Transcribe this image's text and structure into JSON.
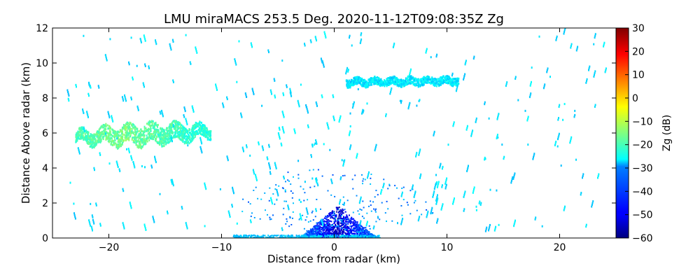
{
  "chart_data": {
    "type": "heatmap",
    "title": "LMU miraMACS 253.5 Deg. 2020-11-12T09:08:35Z  Zg",
    "xlabel": "Distance from radar (km)",
    "ylabel": "Distance Above radar  (km)",
    "xlim": [
      -25,
      25
    ],
    "ylim": [
      0,
      12
    ],
    "x_ticks": [
      -20,
      -10,
      0,
      10,
      20
    ],
    "x_tick_labels": [
      "−20",
      "−10",
      "0",
      "10",
      "20"
    ],
    "y_ticks": [
      0,
      2,
      4,
      6,
      8,
      10,
      12
    ],
    "y_tick_labels": [
      "0",
      "2",
      "4",
      "6",
      "8",
      "10",
      "12"
    ],
    "colorbar": {
      "label": "Zg (dB)",
      "range": [
        -60,
        30
      ],
      "ticks": [
        -60,
        -50,
        -40,
        -30,
        -20,
        -10,
        0,
        10,
        20,
        30
      ],
      "tick_labels": [
        "−60",
        "−50",
        "−40",
        "−30",
        "−20",
        "−10",
        "0",
        "10",
        "20",
        "30"
      ],
      "colormap": "jet"
    },
    "features": [
      {
        "description": "cloud layer left",
        "x_range": [
          -23,
          -11
        ],
        "y_range": [
          5.3,
          6.5
        ],
        "zg_range": [
          -20,
          -12
        ]
      },
      {
        "description": "cloud layer right",
        "x_range": [
          1,
          11
        ],
        "y_range": [
          8.7,
          9.4
        ],
        "zg_range": [
          -32,
          -24
        ]
      },
      {
        "description": "near-radar clutter",
        "x_range": [
          -3,
          4
        ],
        "y_range": [
          0,
          2
        ],
        "zg_range": [
          -55,
          -35
        ]
      },
      {
        "description": "ground clutter strip",
        "x_range": [
          -9,
          4
        ],
        "y_range": [
          0,
          0.2
        ],
        "zg_range": [
          -35,
          -28
        ]
      },
      {
        "description": "scattered noise",
        "x_range": [
          -24,
          24
        ],
        "y_range": [
          0,
          12
        ],
        "zg_range": [
          -32,
          -26
        ]
      }
    ]
  }
}
